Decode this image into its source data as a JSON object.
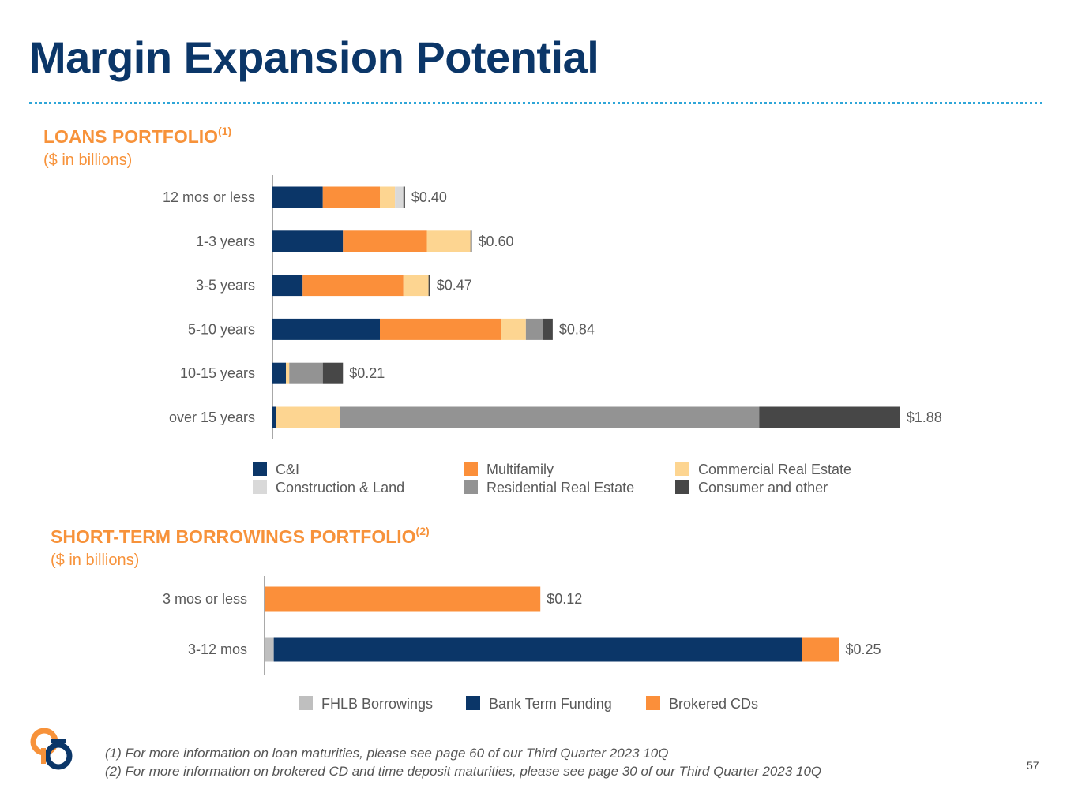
{
  "page": {
    "title": "Margin Expansion Potential",
    "page_number": "57",
    "footnotes": [
      "(1) For more information on loan maturities, please see page 60 of our Third Quarter 2023 10Q",
      "(2) For more information on brokered CD and time deposit maturities, please see page 30 of our Third Quarter 2023 10Q"
    ]
  },
  "loans": {
    "title": "LOANS PORTFOLIO",
    "title_note": "(1)",
    "subtitle": "($ in billions)"
  },
  "borrowings": {
    "title": "SHORT-TERM BORROWINGS PORTFOLIO",
    "title_note": "(2)",
    "subtitle": "($ in billions)"
  },
  "colors": {
    "c_and_i": "#0b3668",
    "multifamily": "#fb8f3a",
    "commercial_re": "#fdd591",
    "construction": "#d9d9d9",
    "residential_re": "#939393",
    "consumer": "#474747",
    "fhlb": "#bfbfbf",
    "bank_term": "#0b3668",
    "brokered": "#fb8f3a",
    "axis": "#8c8c8c",
    "label": "#595959"
  },
  "chart_data": [
    {
      "type": "bar",
      "orientation": "horizontal",
      "stacked": true,
      "categories": [
        "12 mos or less",
        "1-3 years",
        "3-5 years",
        "5-10 years",
        "10-15 years",
        "over 15 years"
      ],
      "series": [
        {
          "name": "C&I",
          "color": "#0b3668",
          "values": [
            0.15,
            0.21,
            0.09,
            0.32,
            0.04,
            0.01
          ]
        },
        {
          "name": "Multifamily",
          "color": "#fb8f3a",
          "values": [
            0.17,
            0.25,
            0.3,
            0.36,
            0.0,
            0.0
          ]
        },
        {
          "name": "Commercial Real Estate",
          "color": "#fdd591",
          "values": [
            0.045,
            0.13,
            0.075,
            0.075,
            0.01,
            0.19
          ]
        },
        {
          "name": "Construction & Land",
          "color": "#d9d9d9",
          "values": [
            0.025,
            0.0,
            0.0,
            0.0,
            0.0,
            0.0
          ]
        },
        {
          "name": "Residential Real Estate",
          "color": "#939393",
          "values": [
            0.0,
            0.0,
            0.0,
            0.05,
            0.1,
            1.25
          ]
        },
        {
          "name": "Consumer and other",
          "color": "#474747",
          "values": [
            0.005,
            0.004,
            0.005,
            0.03,
            0.06,
            0.42
          ]
        }
      ],
      "totals": [
        "$0.40",
        "$0.60",
        "$0.47",
        "$0.84",
        "$0.21",
        "$1.88"
      ],
      "legend_position": "bottom",
      "grid": false
    },
    {
      "type": "bar",
      "orientation": "horizontal",
      "stacked": true,
      "categories": [
        "3 mos or less",
        "3-12 mos"
      ],
      "series": [
        {
          "name": "FHLB Borrowings",
          "color": "#bfbfbf",
          "values": [
            0.0,
            0.004
          ]
        },
        {
          "name": "Bank Term Funding",
          "color": "#0b3668",
          "values": [
            0.0,
            0.23
          ]
        },
        {
          "name": "Brokered CDs",
          "color": "#fb8f3a",
          "values": [
            0.12,
            0.016
          ]
        }
      ],
      "totals": [
        "$0.12",
        "$0.25"
      ],
      "legend_position": "bottom",
      "grid": false
    }
  ]
}
